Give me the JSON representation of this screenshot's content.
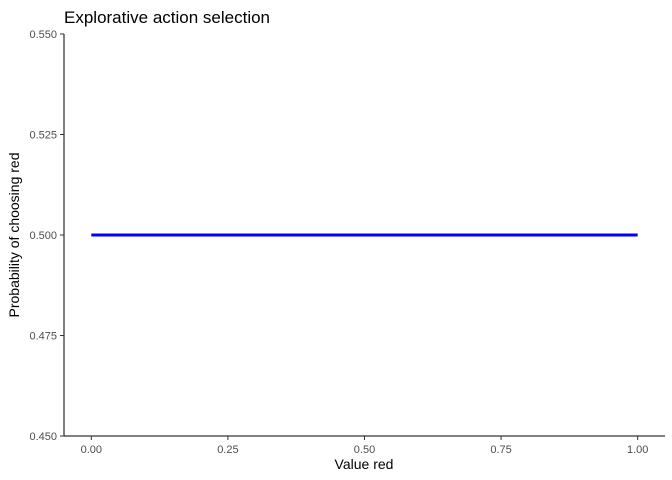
{
  "chart_data": {
    "type": "line",
    "title": "Explorative action selection",
    "xlabel": "Value red",
    "ylabel": "Probability of choosing red",
    "xlim": [
      -0.05,
      1.05
    ],
    "ylim": [
      0.45,
      0.55
    ],
    "x_ticks": [
      0.0,
      0.25,
      0.5,
      0.75,
      1.0
    ],
    "x_tick_labels": [
      "0.00",
      "0.25",
      "0.50",
      "0.75",
      "1.00"
    ],
    "y_ticks": [
      0.45,
      0.475,
      0.5,
      0.525,
      0.55
    ],
    "y_tick_labels": [
      "0.450",
      "0.475",
      "0.500",
      "0.525",
      "0.550"
    ],
    "grid": false,
    "series": [
      {
        "color": "#0000ff",
        "x": [
          0.0,
          0.25,
          0.5,
          0.75,
          1.0
        ],
        "y": [
          0.5,
          0.5,
          0.5,
          0.5,
          0.5
        ]
      }
    ]
  }
}
